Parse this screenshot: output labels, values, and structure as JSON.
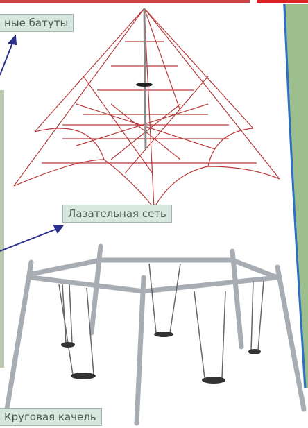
{
  "labels": {
    "trampolines": "ные батуты",
    "climbing_net": "Лазательная сеть",
    "round_swing": "Круговая качель"
  }
}
